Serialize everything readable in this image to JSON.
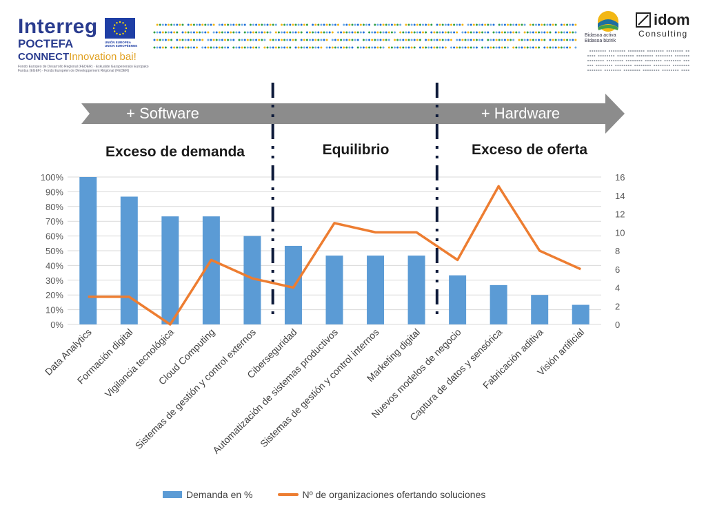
{
  "header": {
    "interreg": "Interreg",
    "poctefa": "POCTEFA",
    "connect": "CONNECT",
    "connect_tag": "Innovation bai!",
    "fine_print": "Fondo Europeo de Desarrollo Regional (FEDER) · Eskualde Garapenerako Europako Funtsa (EGEF) · Fonds Européen de Développement Régional (FEDER)",
    "eu_caption": "UNIÓN EUROPEA UNION EUROPÉENNE",
    "bidasoa": "Bidasoa activa Bidasoa bizirik",
    "idom": "idom",
    "consulting": "Consulting"
  },
  "arrow": {
    "left_label": "+ Software",
    "right_label": "+ Hardware"
  },
  "zones": {
    "left": "Exceso de demanda",
    "middle": "Equilibrio",
    "right": "Exceso de oferta"
  },
  "colors": {
    "bar": "#5b9bd5",
    "line": "#ed7d31",
    "arrow": "#8c8c8c",
    "divider": "#0d1a3a"
  },
  "chart_data": {
    "type": "bar",
    "categories": [
      "Data Analytics",
      "Formación digital",
      "Vigilancia tecnológica",
      "Cloud Computing",
      "Sistemas de gestión y control externos",
      "Ciberseguridad",
      "Automatización de sistemas productivos",
      "Sistemas de gestión y control internos",
      "Marketing digital",
      "Nuevos modelos de negocio",
      "Captura de datos y sensórica",
      "Fabricación aditiva",
      "Visión artificial"
    ],
    "series": [
      {
        "name": "Demanda en %",
        "type": "bar",
        "axis": "left",
        "values": [
          100,
          86.7,
          73.3,
          73.3,
          60,
          53.3,
          46.7,
          46.7,
          46.7,
          33.3,
          26.7,
          20,
          13.3
        ]
      },
      {
        "name": "Nº de organizaciones ofertando soluciones",
        "type": "line",
        "axis": "right",
        "values": [
          3,
          3,
          0,
          7,
          5,
          4,
          11,
          10,
          10,
          7,
          15,
          8,
          6
        ]
      }
    ],
    "y_left": {
      "min": 0,
      "max": 100,
      "ticks": [
        "0%",
        "10%",
        "20%",
        "30%",
        "40%",
        "50%",
        "60%",
        "70%",
        "80%",
        "90%",
        "100%"
      ]
    },
    "y_right": {
      "min": 0,
      "max": 16,
      "ticks": [
        "0",
        "2",
        "4",
        "6",
        "8",
        "10",
        "12",
        "14",
        "16"
      ]
    },
    "legend": "bottom"
  }
}
